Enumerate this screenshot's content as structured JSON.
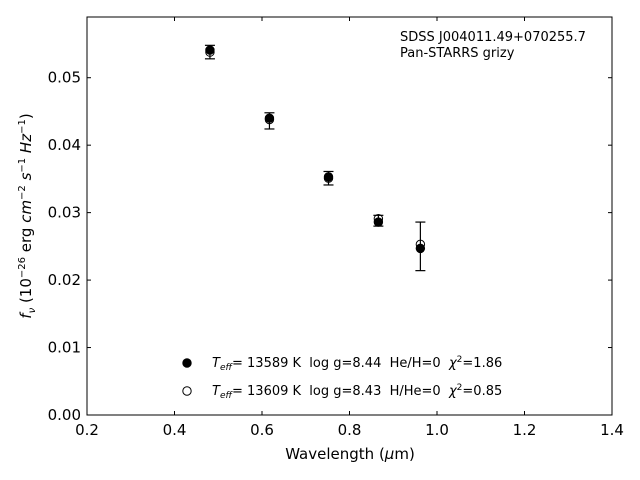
{
  "chart_data": {
    "type": "scatter",
    "annotation": [
      "SDSS J004011.49+070255.7",
      "Pan-STARRS grizy"
    ],
    "xlabel": {
      "main": "Wavelength (",
      "sym": "μ",
      "tail": "m)"
    },
    "ylabel": "f_ν (10^-26 erg cm^-2 s^-1 Hz^-1)",
    "xlim": [
      0.2,
      1.4
    ],
    "ylim": [
      0.0,
      0.059
    ],
    "xticks": [
      "0.2",
      "0.4",
      "0.6",
      "0.8",
      "1.0",
      "1.2",
      "1.4"
    ],
    "yticks": [
      "0.00",
      "0.01",
      "0.02",
      "0.03",
      "0.04",
      "0.05"
    ],
    "observed": {
      "x": [
        0.481,
        0.617,
        0.752,
        0.866,
        0.962
      ],
      "y": [
        0.0538,
        0.0436,
        0.0351,
        0.0288,
        0.025
      ],
      "err": [
        0.001,
        0.0012,
        0.001,
        0.0008,
        0.0036
      ]
    },
    "series": [
      {
        "name": "T_eff= 13589 K  log g=8.44  He/H=0  χ²=1.86",
        "parts": {
          "teff": "= 13589 K  log g=8.44  He/H=0  ",
          "chi": "χ",
          "chival": "=1.86"
        },
        "marker": "filled",
        "x": [
          0.481,
          0.617,
          0.752,
          0.866,
          0.962
        ],
        "y": [
          0.0541,
          0.044,
          0.0353,
          0.0286,
          0.0247
        ]
      },
      {
        "name": "T_eff= 13609 K  log g=8.43  H/He=0  χ²=0.85",
        "parts": {
          "teff": "= 13609 K  log g=8.43  H/He=0  ",
          "chi": "χ",
          "chival": "=0.85"
        },
        "marker": "open",
        "x": [
          0.481,
          0.617,
          0.752,
          0.866,
          0.962
        ],
        "y": [
          0.0538,
          0.0438,
          0.0351,
          0.0291,
          0.0253
        ]
      }
    ],
    "legend_position": "lower-center",
    "grid": false
  }
}
